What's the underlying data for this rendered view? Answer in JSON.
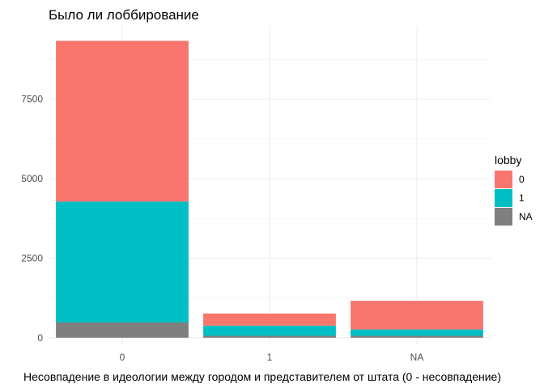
{
  "chart_data": {
    "type": "bar",
    "stacked": true,
    "title": "Было ли лоббирование",
    "xlabel": "Несовпадение в идеологии между городом и представителем от штата (0 - несовпадение)",
    "ylabel": "",
    "categories": [
      "0",
      "1",
      "NA"
    ],
    "ylim": [
      0,
      9500
    ],
    "yticks": [
      0,
      2500,
      5000,
      7500
    ],
    "legend": {
      "title": "lobby",
      "position": "right"
    },
    "grid": true,
    "series": [
      {
        "name": "NA",
        "color": "#7f7f7f",
        "values": [
          480,
          60,
          60
        ]
      },
      {
        "name": "1",
        "color": "#00bfc4",
        "values": [
          3800,
          320,
          200
        ]
      },
      {
        "name": "0",
        "color": "#f8766d",
        "values": [
          5050,
          380,
          900
        ]
      }
    ],
    "legend_order": [
      "0",
      "1",
      "NA"
    ]
  }
}
